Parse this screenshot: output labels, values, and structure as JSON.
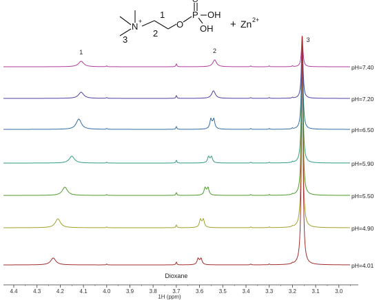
{
  "chart_data": {
    "type": "line",
    "xlabel": "1H (ppm)",
    "xlim": [
      4.45,
      2.92
    ],
    "x_reversed": true,
    "x_ticks": [
      "4.4",
      "4.3",
      "4.2",
      "4.1",
      "4.0",
      "3.9",
      "3.8",
      "3.7",
      "3.6",
      "3.5",
      "3.4",
      "3.3",
      "3.2",
      "3.1",
      "3.0"
    ],
    "x_tick_values": [
      4.4,
      4.3,
      4.2,
      4.1,
      4.0,
      3.9,
      3.8,
      3.7,
      3.6,
      3.5,
      3.4,
      3.3,
      3.2,
      3.1,
      3.0
    ],
    "y_axis_shown": false,
    "grid": false,
    "structure": {
      "n_label": "N",
      "plus": "+",
      "o_ester": "O",
      "p_label": "P",
      "o_double": "O",
      "oh1": "OH",
      "oh2": "OH",
      "label_1": "1",
      "label_2": "2",
      "label_3": "3",
      "plus_sign": "+",
      "zn_label": "Zn",
      "zn_charge": "2+"
    },
    "peak_labels": [
      {
        "text": "1",
        "x": 4.11
      },
      {
        "text": "2",
        "x": 3.535
      },
      {
        "text": "3",
        "x": 3.158
      }
    ],
    "annotations": [
      {
        "text": "Dioxane",
        "x": 3.7
      }
    ],
    "series": [
      {
        "name": "pH=7.40",
        "color": "#b03a9a",
        "peak1": 4.11,
        "peak2": 3.535,
        "doublet": false,
        "h1": 8,
        "h2": 10
      },
      {
        "name": "pH=7.20",
        "color": "#4b3fa0",
        "peak1": 4.11,
        "peak2": 3.54,
        "doublet": false,
        "h1": 9,
        "h2": 11
      },
      {
        "name": "pH=6.50",
        "color": "#2e6aa6",
        "peak1": 4.12,
        "peak2": 3.545,
        "doublet": true,
        "h1": 15,
        "h2": 16
      },
      {
        "name": "pH=5.90",
        "color": "#2e9a82",
        "peak1": 4.15,
        "peak2": 3.555,
        "doublet": true,
        "h1": 10,
        "h2": 10
      },
      {
        "name": "pH=5.50",
        "color": "#4a9a2a",
        "peak1": 4.18,
        "peak2": 3.57,
        "doublet": true,
        "h1": 12,
        "h2": 12
      },
      {
        "name": "pH=4.90",
        "color": "#a2a028",
        "peak1": 4.21,
        "peak2": 3.59,
        "doublet": true,
        "h1": 13,
        "h2": 13
      },
      {
        "name": "pH=4.01",
        "color": "#a02a2a",
        "peak1": 4.23,
        "peak2": 3.6,
        "doublet": true,
        "h1": 10,
        "h2": 10
      }
    ],
    "common_peaks": {
      "choline_methyl": 3.158,
      "dioxane": 3.7,
      "small": [
        3.38,
        3.3,
        3.2,
        4.0
      ]
    }
  }
}
